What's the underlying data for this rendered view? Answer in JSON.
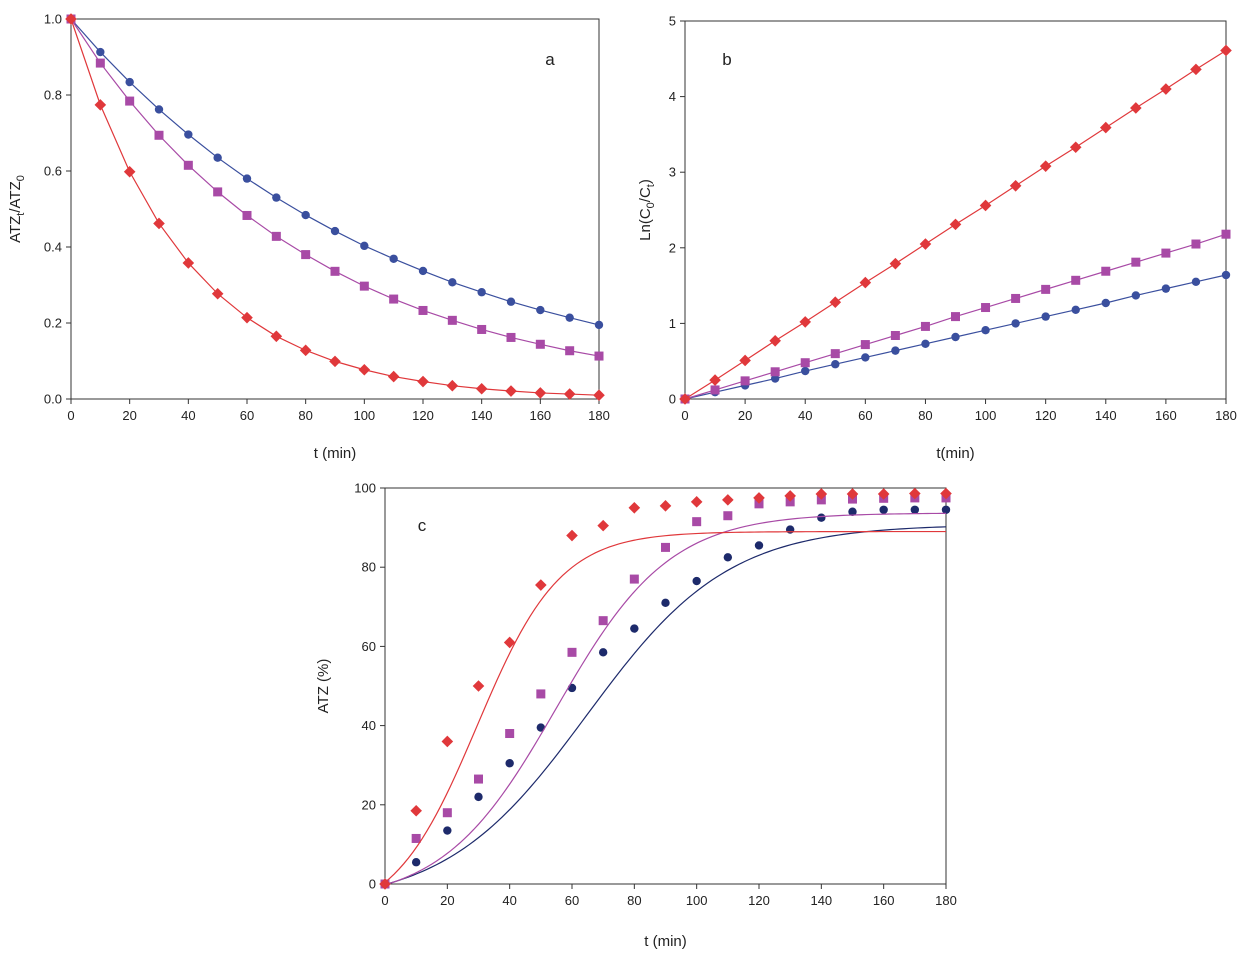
{
  "chart_data": [
    {
      "type": "line",
      "panel_label": "a",
      "title": "",
      "xlabel": "t (min)",
      "ylabel": {
        "base1": "ATZ",
        "sub1": "t",
        "mid": "/ATZ",
        "sub2": "0"
      },
      "xlim": [
        0,
        180
      ],
      "ylim": [
        0,
        1
      ],
      "xticks": [
        "0",
        "20",
        "40",
        "60",
        "80",
        "100",
        "120",
        "140",
        "160",
        "180"
      ],
      "yticks": [
        "0.0",
        "0.2",
        "0.4",
        "0.6",
        "0.8",
        "1.0"
      ],
      "grid": false,
      "x": [
        0,
        10,
        20,
        30,
        40,
        50,
        60,
        70,
        80,
        90,
        100,
        110,
        120,
        130,
        140,
        150,
        160,
        170,
        180
      ],
      "series": [
        {
          "name": "circle",
          "marker": "circle",
          "color": "#3a4f9e",
          "values": [
            1.0,
            0.913,
            0.834,
            0.762,
            0.696,
            0.635,
            0.58,
            0.53,
            0.484,
            0.442,
            0.403,
            0.369,
            0.337,
            0.307,
            0.281,
            0.256,
            0.234,
            0.214,
            0.195
          ]
        },
        {
          "name": "square",
          "marker": "square",
          "color": "#a84aa6",
          "values": [
            1.0,
            0.884,
            0.784,
            0.694,
            0.615,
            0.545,
            0.483,
            0.428,
            0.38,
            0.336,
            0.297,
            0.263,
            0.233,
            0.207,
            0.183,
            0.162,
            0.144,
            0.127,
            0.113
          ]
        },
        {
          "name": "diamond",
          "marker": "diamond",
          "color": "#e0383b",
          "values": [
            1.0,
            0.774,
            0.598,
            0.462,
            0.358,
            0.277,
            0.214,
            0.165,
            0.128,
            0.099,
            0.077,
            0.059,
            0.046,
            0.035,
            0.027,
            0.021,
            0.016,
            0.013,
            0.01
          ]
        }
      ]
    },
    {
      "type": "line",
      "panel_label": "b",
      "title": "",
      "xlabel": "t(min)",
      "ylabel": {
        "base1": "Ln(C",
        "sub1": "0",
        "mid": "/C",
        "sub2": "t",
        "end": ")"
      },
      "xlim": [
        0,
        180
      ],
      "ylim": [
        0,
        5
      ],
      "xticks": [
        "0",
        "20",
        "40",
        "60",
        "80",
        "100",
        "120",
        "140",
        "160",
        "180"
      ],
      "yticks": [
        "0",
        "1",
        "2",
        "3",
        "4",
        "5"
      ],
      "grid": false,
      "x": [
        0,
        10,
        20,
        30,
        40,
        50,
        60,
        70,
        80,
        90,
        100,
        110,
        120,
        130,
        140,
        150,
        160,
        170,
        180
      ],
      "series": [
        {
          "name": "circle",
          "marker": "circle",
          "color": "#3a4f9e",
          "values": [
            0,
            0.09,
            0.18,
            0.27,
            0.37,
            0.46,
            0.55,
            0.64,
            0.73,
            0.82,
            0.91,
            1.0,
            1.09,
            1.18,
            1.27,
            1.37,
            1.46,
            1.55,
            1.64
          ]
        },
        {
          "name": "square",
          "marker": "square",
          "color": "#a84aa6",
          "values": [
            0,
            0.12,
            0.24,
            0.36,
            0.48,
            0.6,
            0.72,
            0.84,
            0.96,
            1.09,
            1.21,
            1.33,
            1.45,
            1.57,
            1.69,
            1.81,
            1.93,
            2.05,
            2.18
          ]
        },
        {
          "name": "diamond",
          "marker": "diamond",
          "color": "#e0383b",
          "values": [
            0,
            0.25,
            0.51,
            0.77,
            1.02,
            1.28,
            1.54,
            1.79,
            2.05,
            2.31,
            2.56,
            2.82,
            3.08,
            3.33,
            3.59,
            3.85,
            4.1,
            4.36,
            4.61
          ]
        }
      ]
    },
    {
      "type": "scatter",
      "panel_label": "c",
      "title": "",
      "xlabel": "t (min)",
      "ylabel": {
        "base1": "ATZ (%)"
      },
      "xlim": [
        0,
        180
      ],
      "ylim": [
        0,
        100
      ],
      "xticks": [
        "0",
        "20",
        "40",
        "60",
        "80",
        "100",
        "120",
        "140",
        "160",
        "180"
      ],
      "yticks": [
        "0",
        "20",
        "40",
        "60",
        "80",
        "100"
      ],
      "grid": false,
      "x": [
        0,
        10,
        20,
        30,
        40,
        50,
        60,
        70,
        80,
        90,
        100,
        110,
        120,
        130,
        140,
        150,
        160,
        170,
        180
      ],
      "series": [
        {
          "name": "circle",
          "marker": "circle",
          "color": "#1d2a6b",
          "values": [
            0,
            5.5,
            13.5,
            22,
            30.5,
            39.5,
            49.5,
            58.5,
            64.5,
            71,
            76.5,
            82.5,
            85.5,
            89.5,
            92.5,
            94,
            94.5,
            94.5,
            94.5
          ],
          "fit": {
            "kind": "logistic",
            "L": 96.2,
            "k": 0.044,
            "t0": 64.8,
            "c": 5.4
          }
        },
        {
          "name": "square",
          "marker": "square",
          "color": "#a84aa6",
          "values": [
            0,
            11.5,
            18,
            26.5,
            38,
            48,
            58.5,
            66.5,
            77,
            85,
            91.5,
            93,
            96,
            96.5,
            97,
            97.2,
            97.4,
            97.5,
            97.5
          ],
          "fit": {
            "kind": "logistic",
            "L": 98.5,
            "k": 0.055,
            "t0": 55,
            "c": 4.8
          }
        },
        {
          "name": "diamond",
          "marker": "diamond",
          "color": "#e0383b",
          "values": [
            0,
            18.5,
            36,
            50,
            61,
            75.5,
            88,
            90.5,
            95,
            95.5,
            96.5,
            97,
            97.5,
            98,
            98.5,
            98.5,
            98.5,
            98.6,
            98.6
          ],
          "fit": {
            "kind": "logistic",
            "L": 98.3,
            "k": 0.075,
            "t0": 29.5,
            "c": 9.3
          }
        }
      ]
    }
  ]
}
